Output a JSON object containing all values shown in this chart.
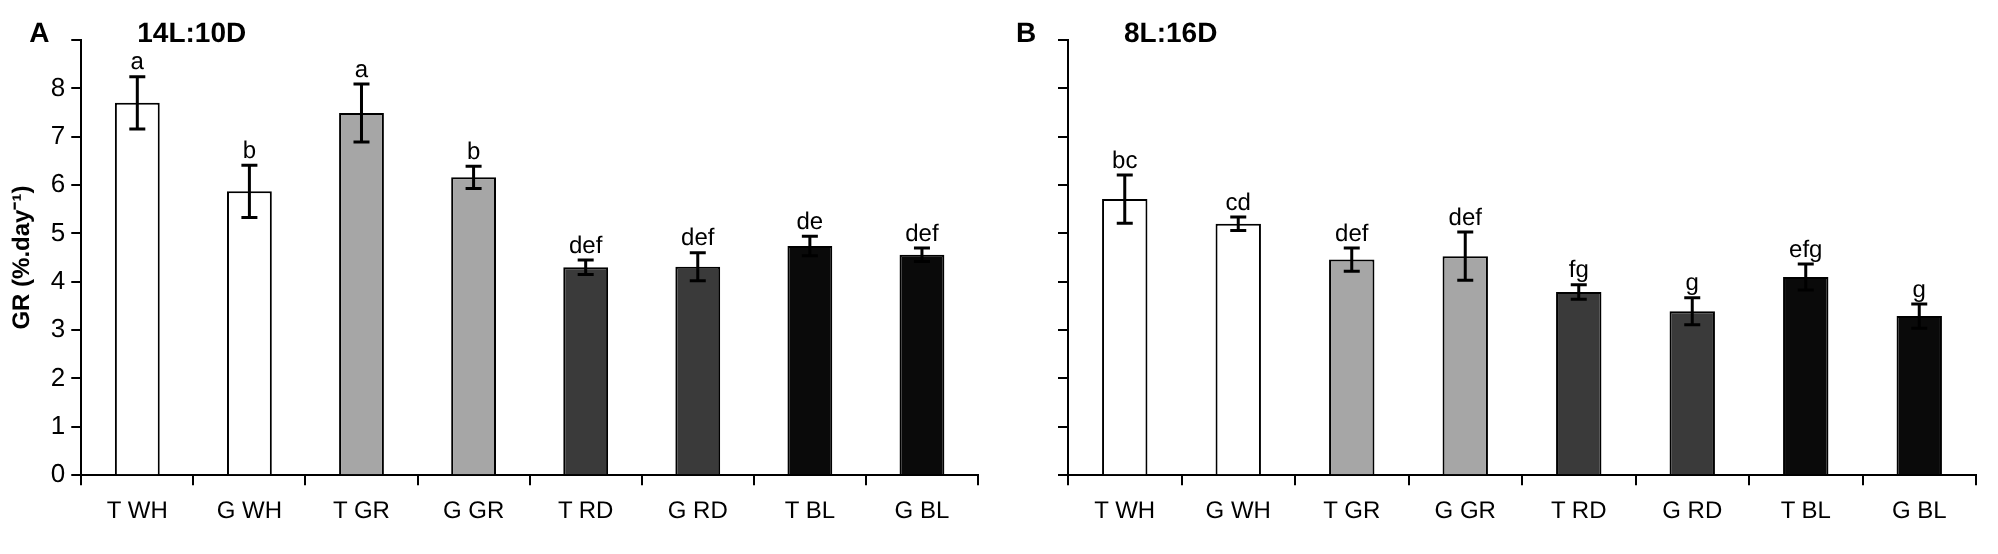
{
  "chart_data": [
    {
      "type": "bar",
      "title": "14L:10D",
      "ylabel": "GR (%.day⁻¹)",
      "annotations": [
        "A",
        {
          "text": "a",
          "x": "T WH",
          "y": 8.24
        },
        {
          "text": "b",
          "x": "G WH",
          "y": 6.41
        },
        {
          "text": "a",
          "x": "T GR",
          "y": 8.09
        },
        {
          "text": "b",
          "x": "G GR",
          "y": 6.39
        },
        {
          "text": "def",
          "x": "T RD",
          "y": 4.45
        },
        {
          "text": "def",
          "x": "G RD",
          "y": 4.6
        },
        {
          "text": "de",
          "x": "T BL",
          "y": 4.94
        },
        {
          "text": "def",
          "x": "G BL",
          "y": 4.7
        }
      ],
      "categories": [
        "T WH",
        "G WH",
        "T GR",
        "G GR",
        "T RD",
        "G RD",
        "T BL",
        "G BL"
      ],
      "values": [
        7.7,
        5.87,
        7.49,
        6.16,
        4.3,
        4.31,
        4.74,
        4.56
      ],
      "errors": [
        0.54,
        0.54,
        0.6,
        0.23,
        0.15,
        0.29,
        0.2,
        0.14
      ],
      "colors": [
        "#ffffff",
        "#ffffff",
        "#a6a6a6",
        "#a6a6a6",
        "#3a3a3a",
        "#3a3a3a",
        "#0a0a0a",
        "#0a0a0a"
      ],
      "ylim": [
        0,
        9
      ],
      "yticks": [
        0,
        1,
        2,
        3,
        4,
        5,
        6,
        7,
        8,
        {
          "value": 9,
          "label": null
        }
      ],
      "grid": false,
      "legend": false
    },
    {
      "type": "bar",
      "title": "8L:16D",
      "annotations": [
        "B",
        {
          "text": "bc",
          "x": "T WH",
          "y": 6.21
        },
        {
          "text": "cd",
          "x": "G WH",
          "y": 5.34
        },
        {
          "text": "def",
          "x": "T GR",
          "y": 4.7
        },
        {
          "text": "def",
          "x": "G GR",
          "y": 5.03
        },
        {
          "text": "fg",
          "x": "T RD",
          "y": 3.94
        },
        {
          "text": "g",
          "x": "G RD",
          "y": 3.67
        },
        {
          "text": "efg",
          "x": "T BL",
          "y": 4.37
        },
        {
          "text": "g",
          "x": "G BL",
          "y": 3.54
        }
      ],
      "categories": [
        "T WH",
        "G WH",
        "T GR",
        "G GR",
        "T RD",
        "G RD",
        "T BL",
        "G BL"
      ],
      "values": [
        5.71,
        5.2,
        4.46,
        4.53,
        3.79,
        3.39,
        4.1,
        3.29
      ],
      "errors": [
        0.5,
        0.14,
        0.24,
        0.5,
        0.15,
        0.28,
        0.27,
        0.25
      ],
      "colors": [
        "#ffffff",
        "#ffffff",
        "#a6a6a6",
        "#a6a6a6",
        "#3a3a3a",
        "#3a3a3a",
        "#0a0a0a",
        "#0a0a0a"
      ],
      "ylim": [
        0,
        9
      ],
      "yticks": [
        0,
        1,
        2,
        3,
        4,
        5,
        6,
        7,
        8,
        9
      ],
      "tick_labels": "x",
      "grid": false,
      "legend": false
    }
  ]
}
